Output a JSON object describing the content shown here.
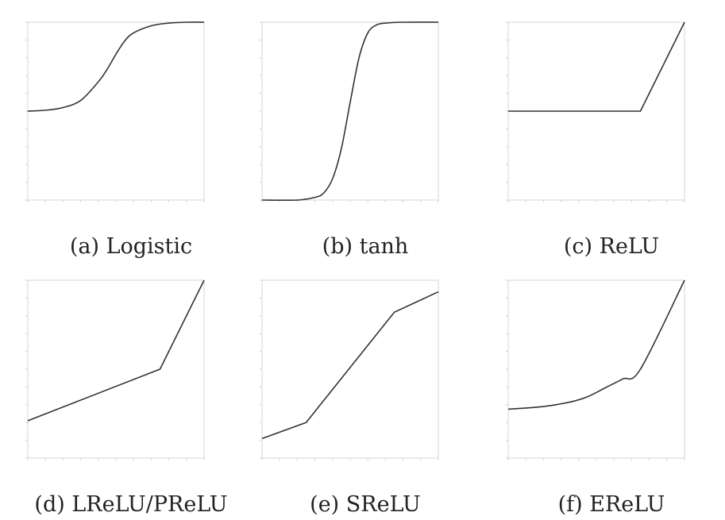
{
  "chart_data": [
    {
      "type": "line",
      "caption": "(a) Logistic",
      "xlim": [
        -10,
        10
      ],
      "ylim": [
        -1,
        1
      ],
      "x": [
        -10,
        -8,
        -6,
        -4,
        -2,
        -1,
        0,
        1,
        2,
        4,
        6,
        8,
        10
      ],
      "series": [
        {
          "values": [
            0.0,
            0.01,
            0.04,
            0.12,
            0.33,
            0.47,
            0.64,
            0.79,
            0.88,
            0.96,
            0.99,
            1.0,
            1.0
          ]
        }
      ]
    },
    {
      "type": "line",
      "caption": "(b) tanh",
      "xlim": [
        -10,
        10
      ],
      "ylim": [
        -1,
        1
      ],
      "x": [
        -10,
        -6,
        -4,
        -3,
        -2,
        -1,
        0,
        1,
        2,
        3,
        4,
        6,
        10
      ],
      "series": [
        {
          "values": [
            -1.0,
            -1.0,
            -0.97,
            -0.92,
            -0.76,
            -0.42,
            0.1,
            0.6,
            0.88,
            0.97,
            0.99,
            1.0,
            1.0
          ]
        }
      ]
    },
    {
      "type": "line",
      "caption": "(c) ReLU",
      "xlim": [
        -10,
        10
      ],
      "ylim": [
        -1,
        1
      ],
      "x": [
        -10,
        5,
        10
      ],
      "series": [
        {
          "values": [
            0.0,
            0.0,
            1.0
          ]
        }
      ]
    },
    {
      "type": "line",
      "caption": "(d) LReLU/PReLU",
      "xlim": [
        -10,
        10
      ],
      "ylim": [
        -1,
        1
      ],
      "x": [
        -10,
        5,
        10
      ],
      "series": [
        {
          "values": [
            -0.58,
            0.0,
            1.0
          ]
        }
      ]
    },
    {
      "type": "line",
      "caption": "(e) SReLU",
      "xlim": [
        -10,
        10
      ],
      "ylim": [
        -1,
        1
      ],
      "x": [
        -10,
        -5,
        5,
        10
      ],
      "series": [
        {
          "values": [
            -0.78,
            -0.6,
            0.64,
            0.87
          ]
        }
      ]
    },
    {
      "type": "line",
      "caption": "(f) EReLU",
      "xlim": [
        -10,
        10
      ],
      "ylim": [
        -1,
        1
      ],
      "x": [
        -10,
        -6,
        -3,
        -1,
        1,
        3,
        5,
        10
      ],
      "series": [
        {
          "values": [
            -0.45,
            -0.42,
            -0.37,
            -0.31,
            -0.21,
            -0.11,
            0.0,
            1.0
          ]
        }
      ]
    }
  ]
}
